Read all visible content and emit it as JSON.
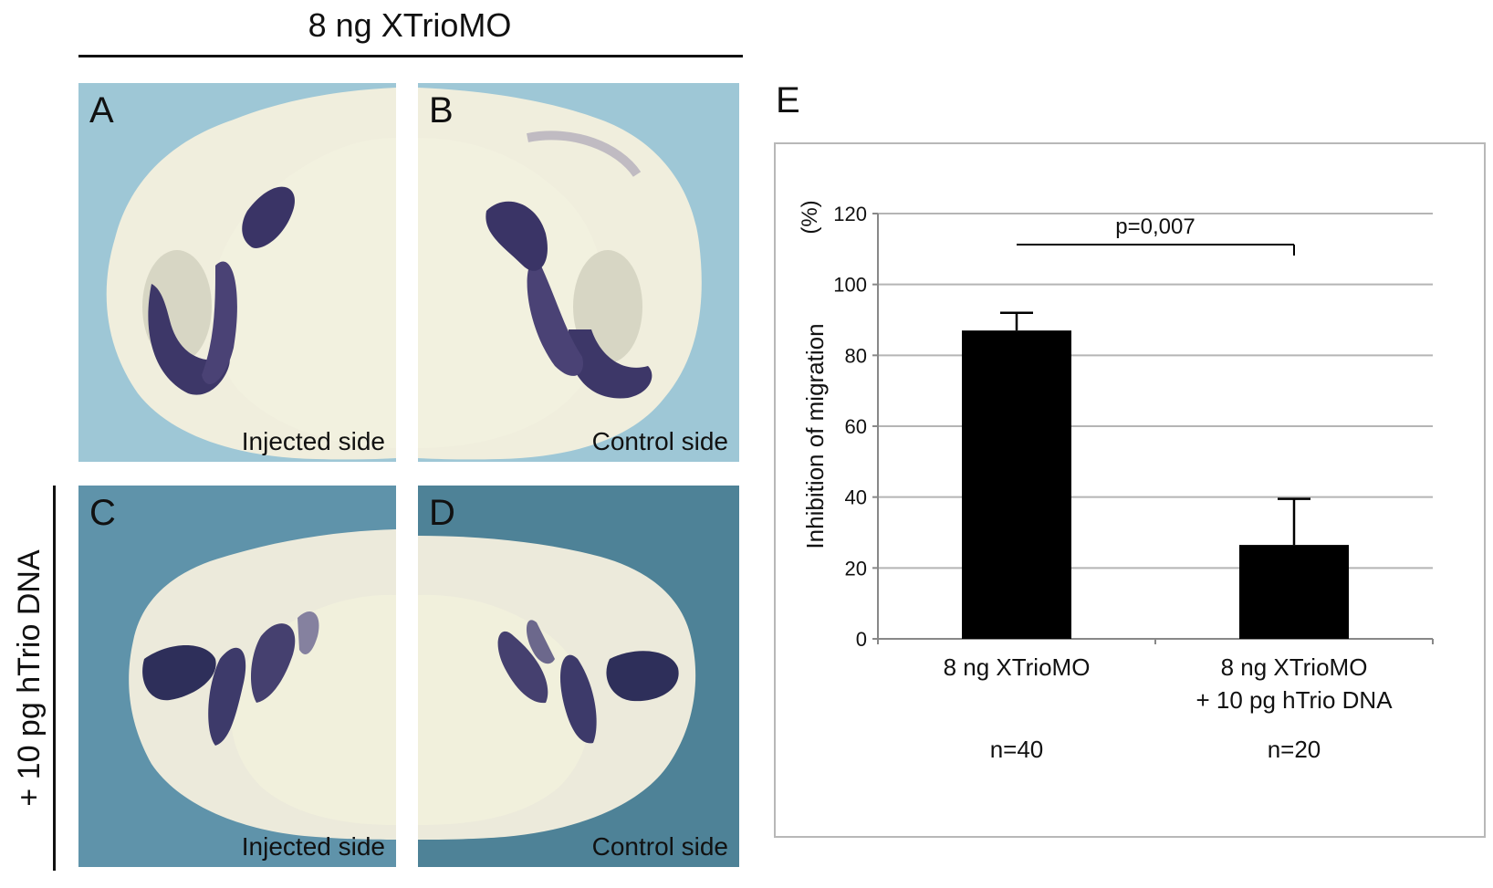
{
  "header": {
    "title": "8 ng XTrioMO"
  },
  "left_label": "+ 10 pg hTrio DNA",
  "panels": [
    {
      "letter": "A",
      "caption": "Injected side"
    },
    {
      "letter": "B",
      "caption": "Control side"
    },
    {
      "letter": "C",
      "caption": "Injected side"
    },
    {
      "letter": "D",
      "caption": "Control side"
    }
  ],
  "chart_panel_letter": "E",
  "chart_data": {
    "type": "bar",
    "title": "",
    "categories": [
      [
        "8 ng XTrioMO"
      ],
      [
        "8 ng XTrioMO",
        "+ 10 pg hTrio DNA"
      ]
    ],
    "values": [
      87,
      26.5
    ],
    "error_upper": [
      92,
      39.5
    ],
    "n_labels": [
      "n=40",
      "n=20"
    ],
    "ylabel": "Inhibition of migration",
    "ylabel_unit": "(%)",
    "ylim": [
      0,
      120
    ],
    "yticks": [
      0,
      20,
      40,
      60,
      80,
      100,
      120
    ],
    "grid": true,
    "significance": {
      "text": "p=0,007",
      "between": [
        0,
        1
      ]
    },
    "colors": {
      "bar": "#000000",
      "grid": "#b5b5b5",
      "axis": "#888888"
    }
  }
}
